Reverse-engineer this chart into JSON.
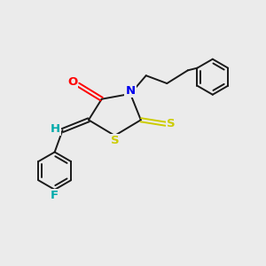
{
  "bg_color": "#ebebeb",
  "bond_color": "#1a1a1a",
  "line_width": 1.4,
  "atom_colors": {
    "O": "#ff0000",
    "N": "#0000ee",
    "S_thio": "#cccc00",
    "S_ring": "#cccc00",
    "F": "#00aaaa",
    "H": "#00aaaa",
    "C": "#1a1a1a"
  },
  "font_size": 9.5
}
